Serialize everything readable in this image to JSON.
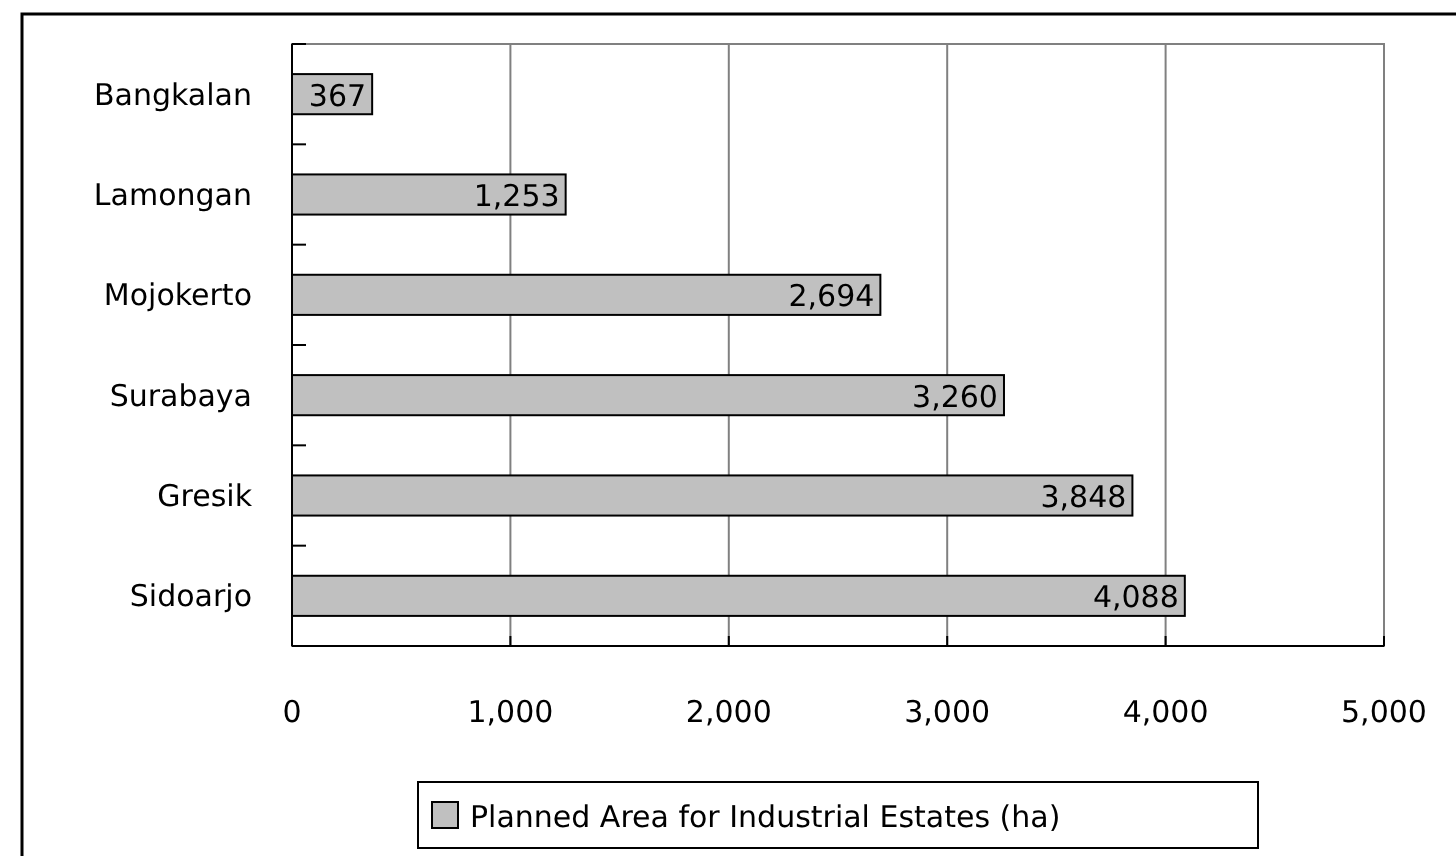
{
  "chart_data": {
    "type": "bar",
    "orientation": "horizontal",
    "categories": [
      "Bangkalan",
      "Lamongan",
      "Mojokerto",
      "Surabaya",
      "Gresik",
      "Sidoarjo"
    ],
    "series": [
      {
        "name": "Planned Area for Industrial Estates (ha)",
        "color": "#c0c0c0",
        "values": [
          367,
          1253,
          2694,
          3260,
          3848,
          4088
        ],
        "value_labels": [
          "367",
          "1,253",
          "2,694",
          "3,260",
          "3,848",
          "4,088"
        ]
      }
    ],
    "xlim": [
      0,
      5000
    ],
    "xticks": [
      {
        "value": 0,
        "label": "0"
      },
      {
        "value": 1000,
        "label": "1,000"
      },
      {
        "value": 2000,
        "label": "2,000"
      },
      {
        "value": 3000,
        "label": "3,000"
      },
      {
        "value": 4000,
        "label": "4,000"
      },
      {
        "value": 5000,
        "label": "5,000"
      }
    ],
    "grid": "x",
    "legend": "bottom"
  }
}
